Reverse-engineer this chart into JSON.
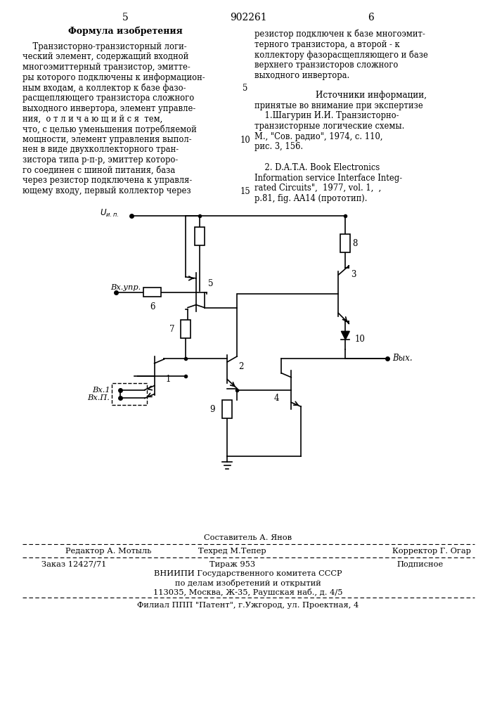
{
  "bg_color": "#ffffff",
  "page_width": 7.07,
  "page_height": 10.0,
  "top_left_num": "5",
  "top_center_num": "902261",
  "top_right_num": "6",
  "left_col_header": "Формула изобретения",
  "left_col_lines": [
    "    Транзисторно-транзисторный логи-",
    "ческий элемент, содержащий входной",
    "многоэмиттерный транзистор, эмитте-",
    "ры которого подключены к информацион-",
    "ным входам, а коллектор к базе фазо-",
    "расщепляющего транзистора сложного",
    "выходного инвертора, элемент управле-",
    "ния,  о т л и ч а ю щ и й с я  тем,",
    "что, с целью уменьшения потребляемой",
    "мощности, элемент управления выпол-",
    "нен в виде двухколлекторного тран-",
    "зистора типа р-п-р, эмиттер которо-",
    "го соединен с шиной питания, база",
    "через резистор подключена к управля-",
    "ющему входу, первый коллектор через"
  ],
  "right_col_lines_top": [
    "резистор подключен к базе многоэмит-",
    "терного транзистора, а второй - к",
    "коллектору фазорасщепляющего и базе",
    "верхнего транзисторов сложного",
    "выходного инвертора."
  ],
  "right_col_ref_header": "Источники информации,",
  "right_col_ref_sub": "принятые во внимание при экспертизе",
  "right_col_refs": [
    "    1.Шагурин И.И. Транзисторно-",
    "транзисторные логические схемы.",
    "М., \"Сов. радио\", 1974, с. 110,",
    "рис. 3, 156.",
    "",
    "    2. D.A.T.A. Book Electronics",
    "Information service Interface Integ-",
    "rated Circuits\",  1977, vol. 1,  ,",
    "p.81, fig. AA14 (прототип)."
  ],
  "footer_sostavitel": "Составитель А. Янов",
  "footer_redaktor": "Редактор А. Мотыль",
  "footer_tekhred": "Техред М.Тепер",
  "footer_korrektor": "Корректор Г. Огар",
  "footer_zakaz": "Заказ 12427/71",
  "footer_tirazh": "Тираж 953",
  "footer_podpisnoe": "Подписное",
  "footer_vniipи": "ВНИИПИ Государственного комитета СССР",
  "footer_delam": "по делам изобретений и открытий",
  "footer_adres": "113035, Москва, Ж-35, Раушская наб., д. 4/5",
  "footer_filial": "Филиал ППП \"Патент\", г.Ужгород, ул. Проектная, 4"
}
